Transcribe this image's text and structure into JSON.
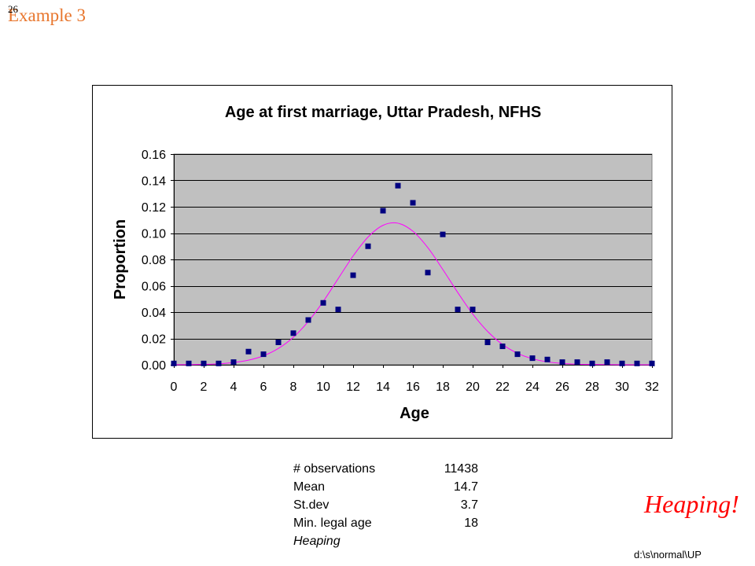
{
  "slide": {
    "number": "26",
    "heading": "Example 3"
  },
  "colors": {
    "heading": "#E8762D",
    "callout": "#FF0000"
  },
  "chart_data": {
    "type": "scatter",
    "title": "Age at first marriage, Uttar Pradesh, NFHS",
    "xlabel": "Age",
    "ylabel": "Proportion",
    "xlim": [
      0,
      32
    ],
    "ylim": [
      0,
      0.16
    ],
    "xticks": [
      "0",
      "2",
      "4",
      "6",
      "8",
      "10",
      "12",
      "14",
      "16",
      "18",
      "20",
      "22",
      "24",
      "26",
      "28",
      "30",
      "32"
    ],
    "yticks": [
      "0.00",
      "0.02",
      "0.04",
      "0.06",
      "0.08",
      "0.10",
      "0.12",
      "0.14",
      "0.16"
    ],
    "grid": true,
    "x": [
      0,
      1,
      2,
      3,
      4,
      5,
      6,
      7,
      8,
      9,
      10,
      11,
      12,
      13,
      14,
      15,
      16,
      17,
      18,
      19,
      20,
      21,
      22,
      23,
      24,
      25,
      26,
      27,
      28,
      29,
      30,
      31,
      32
    ],
    "series": [
      {
        "type": "scatter",
        "color": "#000080",
        "y": [
          0.001,
          0.001,
          0.001,
          0.001,
          0.002,
          0.01,
          0.008,
          0.017,
          0.024,
          0.034,
          0.047,
          0.042,
          0.068,
          0.09,
          0.117,
          0.136,
          0.123,
          0.07,
          0.099,
          0.042,
          0.042,
          0.017,
          0.014,
          0.008,
          0.005,
          0.004,
          0.002,
          0.002,
          0.001,
          0.002,
          0.001,
          0.001,
          0.001
        ]
      },
      {
        "type": "line",
        "color": "#FF00FF",
        "y": [
          0.0,
          0.0001,
          0.0003,
          0.0007,
          0.0017,
          0.0035,
          0.0068,
          0.0124,
          0.0209,
          0.0329,
          0.0481,
          0.0654,
          0.0826,
          0.097,
          0.1059,
          0.1075,
          0.1014,
          0.0889,
          0.0724,
          0.0549,
          0.0386,
          0.0253,
          0.0154,
          0.0087,
          0.0046,
          0.0022,
          0.001,
          0.0004,
          0.0002,
          0.0001,
          0.0,
          0.0,
          0.0
        ]
      }
    ]
  },
  "stats": {
    "rows": [
      {
        "label": "# observations",
        "value": "11438"
      },
      {
        "label": "Mean",
        "value": "14.7"
      },
      {
        "label": "St.dev",
        "value": "3.7"
      },
      {
        "label": "Min. legal age",
        "value": "18"
      }
    ],
    "note": "Heaping"
  },
  "callout": "Heaping!",
  "footer": "d:\\s\\normal\\UP"
}
